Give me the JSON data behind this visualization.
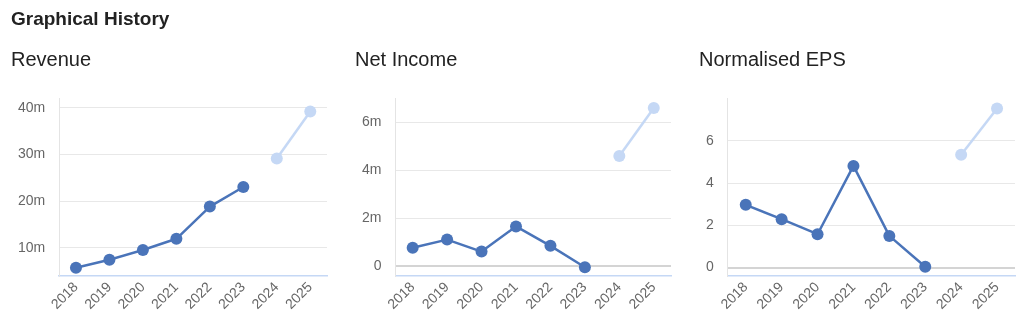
{
  "chart_data": [
    {
      "type": "line",
      "title": "Revenue",
      "annotations": [
        "Graphical History"
      ],
      "categories": [
        "2018",
        "2019",
        "2020",
        "2021",
        "2022",
        "2023",
        "2024",
        "2025"
      ],
      "series": [
        {
          "color": "#4a74b9",
          "values": [
            5.7,
            7.4,
            9.5,
            11.9,
            18.8,
            23.0,
            null,
            null
          ]
        },
        {
          "color": "#c5d8f5",
          "values": [
            null,
            null,
            null,
            null,
            null,
            null,
            29.1,
            39.2
          ]
        }
      ],
      "yticks": [
        {
          "value": 10,
          "label": "10m"
        },
        {
          "value": 20,
          "label": "20m"
        },
        {
          "value": 30,
          "label": "30m"
        },
        {
          "value": 40,
          "label": "40m"
        }
      ],
      "ylim": [
        3.9,
        42
      ],
      "grid": "y",
      "legend": false,
      "marker": "circle",
      "line_style": "solid"
    },
    {
      "type": "line",
      "title": "Net Income",
      "categories": [
        "2018",
        "2019",
        "2020",
        "2021",
        "2022",
        "2023",
        "2024",
        "2025"
      ],
      "series": [
        {
          "color": "#4a74b9",
          "values": [
            0.78,
            1.12,
            0.62,
            1.67,
            0.86,
            -0.03,
            null,
            null
          ]
        },
        {
          "color": "#c5d8f5",
          "values": [
            null,
            null,
            null,
            null,
            null,
            null,
            4.6,
            6.6
          ]
        }
      ],
      "yticks": [
        0,
        {
          "value": 2,
          "label": "2m"
        },
        {
          "value": 4,
          "label": "4m"
        },
        {
          "value": 6,
          "label": "6m"
        }
      ],
      "ylim": [
        -0.4,
        7
      ],
      "grid": "y",
      "legend": false,
      "marker": "circle",
      "line_style": "solid"
    },
    {
      "type": "line",
      "title": "Normalised EPS",
      "categories": [
        "2018",
        "2019",
        "2020",
        "2021",
        "2022",
        "2023",
        "2024",
        "2025"
      ],
      "series": [
        {
          "color": "#4a74b9",
          "values": [
            2.97,
            2.29,
            1.58,
            4.81,
            1.5,
            0.04,
            null,
            null
          ]
        },
        {
          "color": "#c5d8f5",
          "values": [
            null,
            null,
            null,
            null,
            null,
            null,
            5.34,
            7.52
          ]
        }
      ],
      "yticks": [
        0,
        2,
        4,
        6
      ],
      "ylim": [
        -0.4,
        8
      ],
      "grid": "y",
      "legend": false,
      "marker": "circle",
      "line_style": "solid"
    }
  ]
}
